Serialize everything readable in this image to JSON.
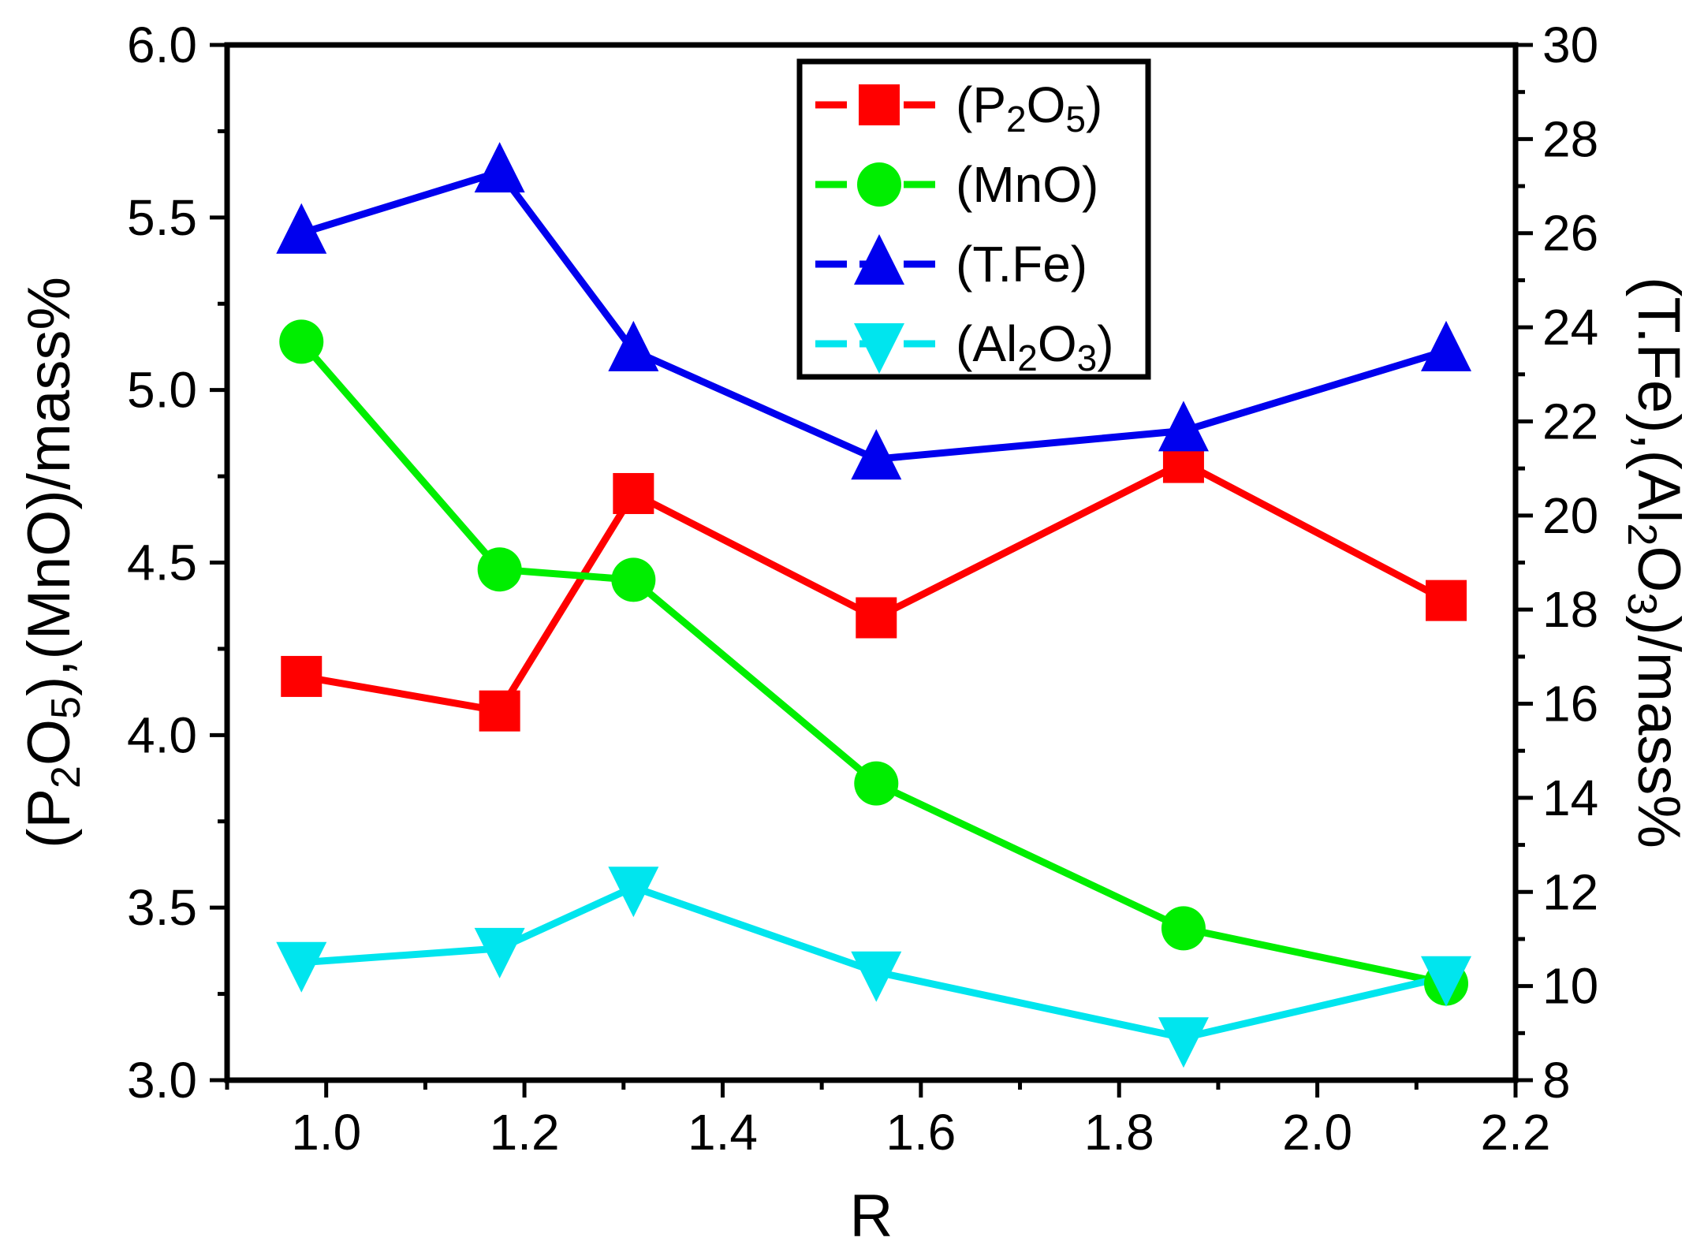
{
  "chart_data": {
    "type": "line",
    "x": [
      0.975,
      1.175,
      1.31,
      1.555,
      1.865,
      2.13
    ],
    "xlabel": "R",
    "xlim": [
      0.9,
      2.2
    ],
    "xticks": [
      1.0,
      1.2,
      1.4,
      1.6,
      1.8,
      2.0,
      2.2
    ],
    "xtick_labels": [
      "1.0",
      "1.2",
      "1.4",
      "1.6",
      "1.8",
      "2.0",
      "2.2"
    ],
    "left_axis": {
      "label": "(P2O5),(MnO)/mass%",
      "label_parts": {
        "a": "(P",
        "a_sub": "2",
        "b": "O",
        "b_sub": "5",
        "c": "),(MnO)/mass%"
      },
      "ylim": [
        3.0,
        6.0
      ],
      "ticks": [
        3.0,
        3.5,
        4.0,
        4.5,
        5.0,
        5.5,
        6.0
      ],
      "tick_labels": [
        "3.0",
        "3.5",
        "4.0",
        "4.5",
        "5.0",
        "5.5",
        "6.0"
      ]
    },
    "right_axis": {
      "label": "(T.Fe),(Al2O3)/mass%",
      "label_parts": {
        "a": "(T.Fe),(Al",
        "a_sub": "2",
        "b": "O",
        "b_sub": "3",
        "c": ")/mass%"
      },
      "ylim": [
        8,
        30
      ],
      "ticks": [
        8,
        10,
        12,
        14,
        16,
        18,
        20,
        22,
        24,
        26,
        28,
        30
      ],
      "tick_labels": [
        "8",
        "10",
        "12",
        "14",
        "16",
        "18",
        "20",
        "22",
        "24",
        "26",
        "28",
        "30"
      ]
    },
    "series": [
      {
        "name": "(P2O5)",
        "legend": {
          "pre": "(P",
          "sub1": "2",
          "mid": "O",
          "sub2": "5",
          "post": ")"
        },
        "axis": "left",
        "color": "#ff0000",
        "marker": "square",
        "values": [
          4.17,
          4.07,
          4.7,
          4.34,
          4.79,
          4.39
        ]
      },
      {
        "name": "(MnO)",
        "legend": {
          "pre": "(MnO)",
          "sub1": "",
          "mid": "",
          "sub2": "",
          "post": ""
        },
        "axis": "left",
        "color": "#00ee00",
        "marker": "circle",
        "values": [
          5.14,
          4.48,
          4.45,
          3.86,
          3.44,
          3.28
        ]
      },
      {
        "name": "(T.Fe)",
        "legend": {
          "pre": "(T.Fe)",
          "sub1": "",
          "mid": "",
          "sub2": "",
          "post": ""
        },
        "axis": "right",
        "color": "#0000ee",
        "marker": "triangle-up",
        "values": [
          26.0,
          27.3,
          23.5,
          21.2,
          21.8,
          23.5
        ]
      },
      {
        "name": "(Al2O3)",
        "legend": {
          "pre": "(Al",
          "sub1": "2",
          "mid": "O",
          "sub2": "3",
          "post": ")"
        },
        "axis": "right",
        "color": "#00e5ee",
        "marker": "triangle-down",
        "values": [
          10.5,
          10.8,
          12.1,
          10.3,
          8.9,
          10.2
        ]
      }
    ],
    "legend_position": "top-center"
  }
}
